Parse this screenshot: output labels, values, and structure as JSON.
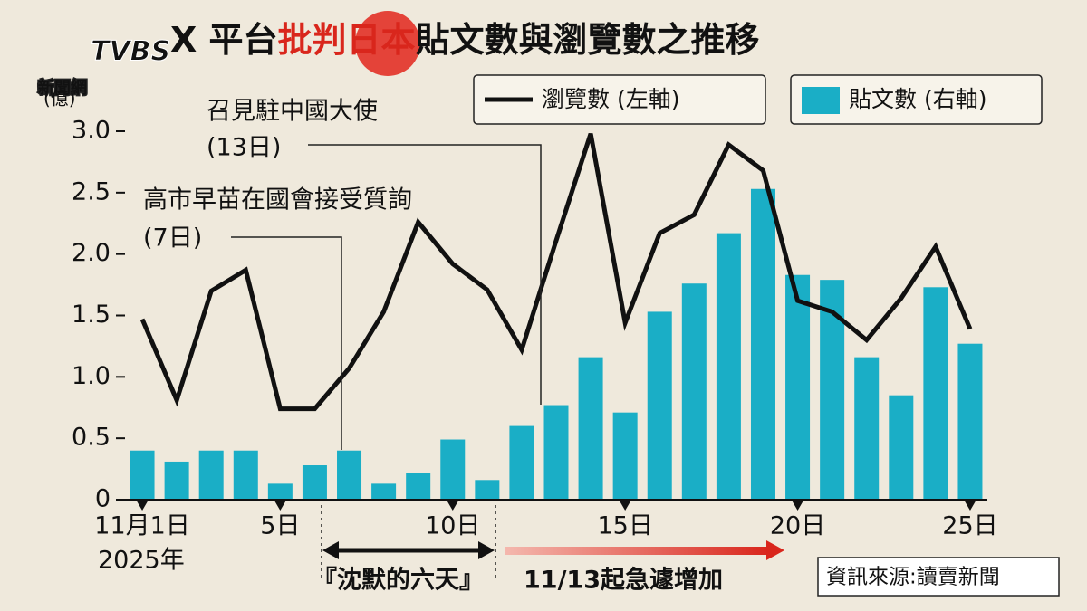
{
  "chart_data": {
    "type": "bar_line",
    "brand": "TVBS",
    "brand_sub": "新聞網",
    "title_parts": [
      "X 平台",
      "批判日本",
      "貼文數與瀏覽數之推移"
    ],
    "y_unit": "(億)",
    "categories": [
      "11月1日",
      null,
      null,
      null,
      "5日",
      null,
      null,
      null,
      null,
      "10日",
      null,
      null,
      null,
      null,
      "15日",
      null,
      null,
      null,
      null,
      "20日",
      null,
      null,
      null,
      null,
      "25日"
    ],
    "x_note": "2025年",
    "series": [
      {
        "name": "貼文數 (右軸)",
        "kind": "bar",
        "color": "#1aaec6",
        "values": [
          0.4,
          0.31,
          0.4,
          0.4,
          0.13,
          0.28,
          0.4,
          0.13,
          0.22,
          0.49,
          0.16,
          0.6,
          0.77,
          1.16,
          0.71,
          1.53,
          1.76,
          2.17,
          2.53,
          1.83,
          1.79,
          1.16,
          0.85,
          1.73,
          1.27
        ]
      },
      {
        "name": "瀏覽數 (左軸)",
        "kind": "line",
        "color": "#111111",
        "values": [
          1.47,
          0.81,
          1.7,
          1.87,
          0.74,
          0.74,
          1.07,
          1.53,
          2.26,
          1.92,
          1.71,
          1.22,
          2.11,
          2.98,
          1.44,
          2.17,
          2.32,
          2.89,
          2.68,
          1.62,
          1.53,
          1.3,
          1.64,
          2.06,
          1.39
        ]
      }
    ],
    "ylim": [
      0,
      3
    ],
    "yticks": [
      0,
      0.5,
      {
        "value": 1,
        "label": "1.0"
      },
      1.5,
      {
        "value": 2,
        "label": "2.0"
      },
      2.5,
      {
        "value": 3,
        "label": "3.0"
      }
    ],
    "annotations": [
      "召見駐中國大使",
      "(13日)",
      "高市早苗在國會接受質詢",
      "(7日)",
      "『沈默的六天』",
      "11/13起急遽增加"
    ],
    "source": "資訊來源:讀賣新聞"
  }
}
